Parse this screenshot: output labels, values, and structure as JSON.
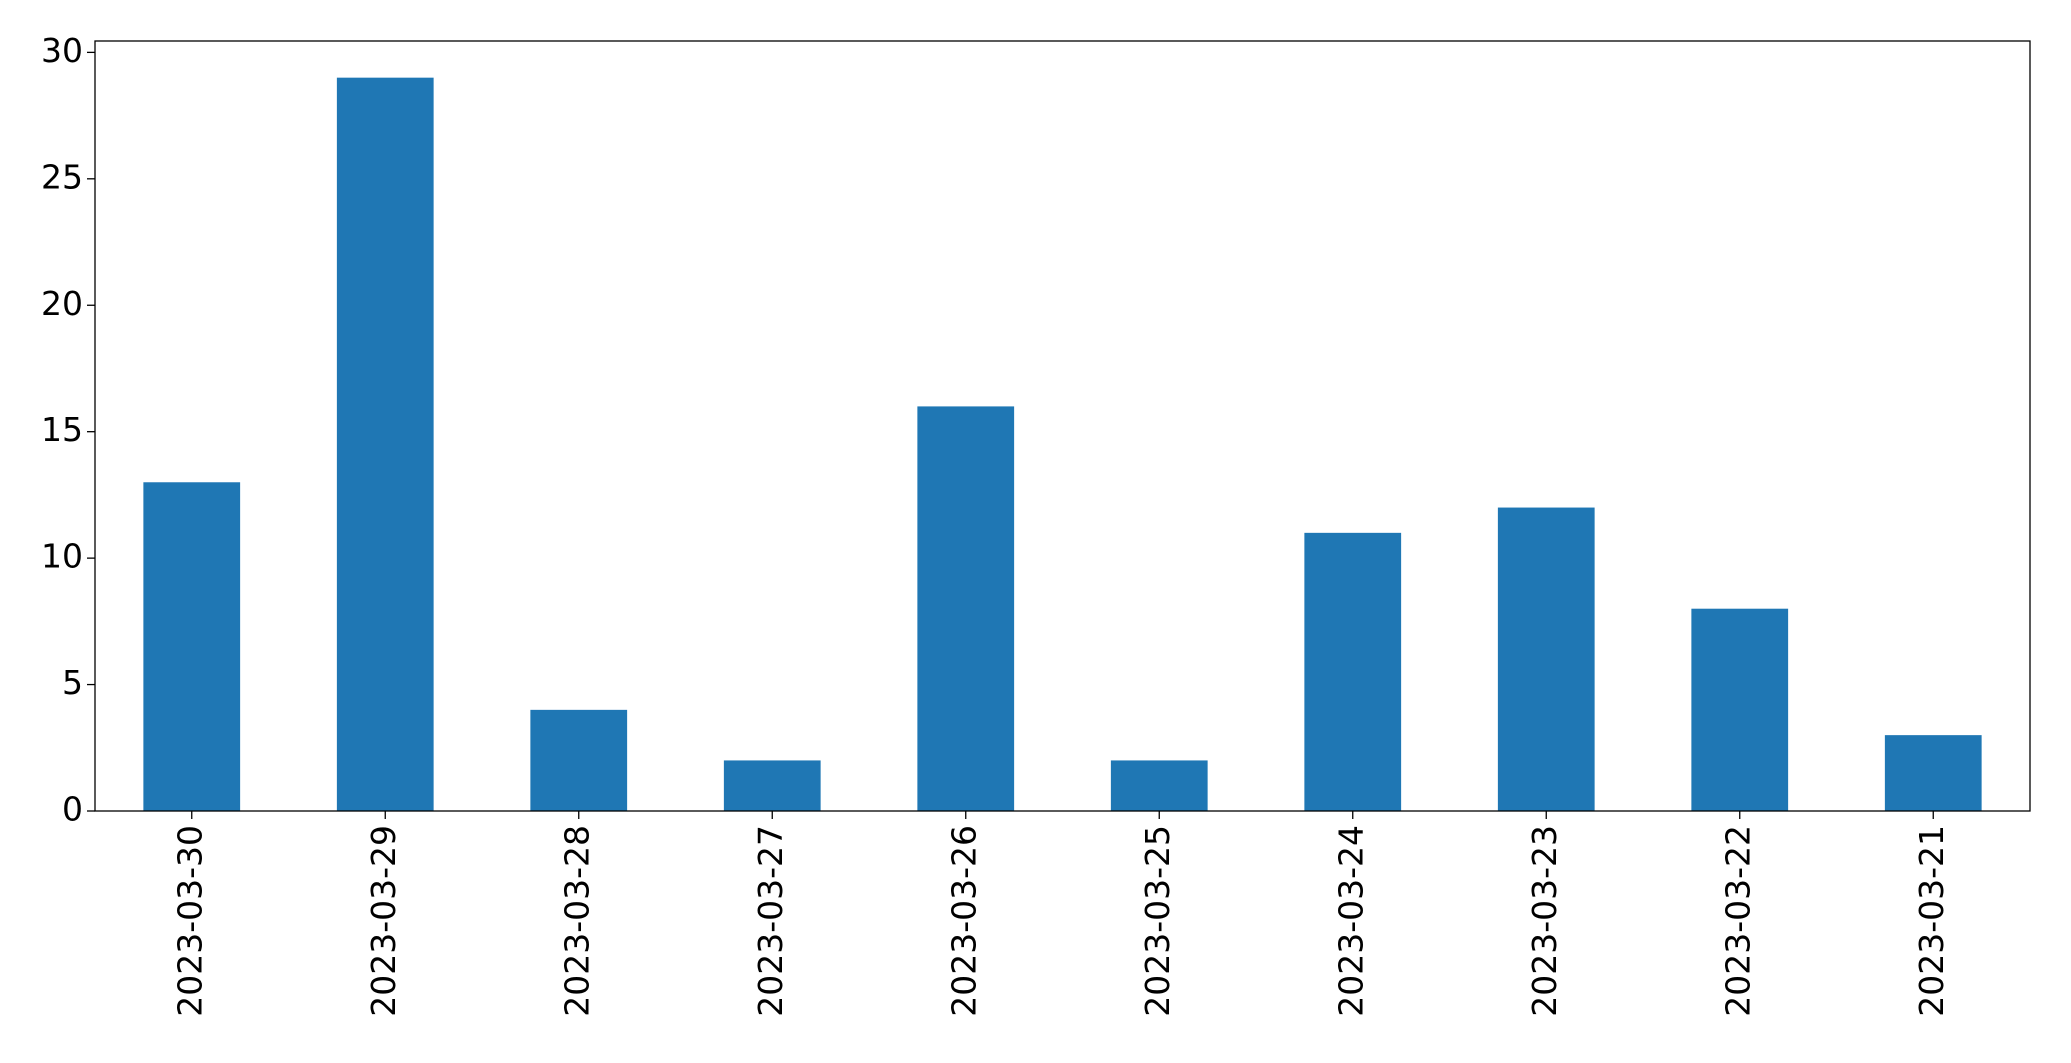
{
  "chart_data": {
    "type": "bar",
    "categories": [
      "2023-03-30",
      "2023-03-29",
      "2023-03-28",
      "2023-03-27",
      "2023-03-26",
      "2023-03-25",
      "2023-03-24",
      "2023-03-23",
      "2023-03-22",
      "2023-03-21"
    ],
    "values": [
      13,
      29,
      4,
      2,
      16,
      2,
      11,
      12,
      8,
      3
    ],
    "color": "#1f77b4",
    "ylim": [
      0,
      30.45
    ],
    "yticks": [
      0,
      5,
      10,
      15,
      20,
      25,
      30
    ],
    "grid": false
  }
}
